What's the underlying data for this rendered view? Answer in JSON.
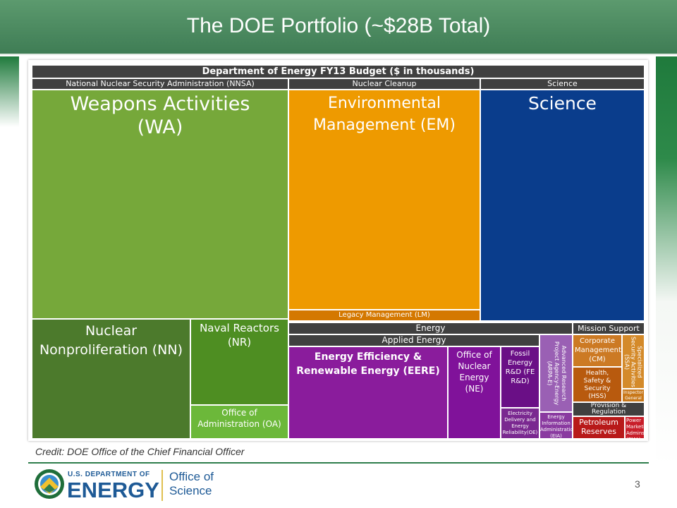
{
  "slide": {
    "title": "The DOE Portfolio (~$28B Total)",
    "credit": "Credit: DOE Office of the Chief Financial Officer",
    "page_number": "3"
  },
  "logo": {
    "agency_top": "U.S. DEPARTMENT OF",
    "agency_main": "ENERGY",
    "office": "Office of Science"
  },
  "treemap": {
    "title": "Department of Energy FY13 Budget ($ in thousands)",
    "groups": {
      "nnsa": "National Nuclear Security Administration (NNSA)",
      "nuclear_cleanup": "Nuclear Cleanup",
      "science": "Science",
      "energy": "Energy",
      "applied_energy": "Applied Energy",
      "mission_support": "Mission Support",
      "provision": "Provision & Regulation"
    },
    "cells": {
      "wa": "Weapons Activities (WA)",
      "nn": "Nuclear Nonproliferation (NN)",
      "nr": "Naval Reactors (NR)",
      "oa": "Office of Administration (OA)",
      "em": "Environmental Management (EM)",
      "lm": "Legacy Management (LM)",
      "sc": "Science",
      "eere": "Energy Efficiency & Renewable Energy (EERE)",
      "ne": "Office of Nuclear Energy (NE)",
      "fe": "Fossil Energy R&D (FE R&D)",
      "oe": "Electricity Delivery and Energy Reliability(OE)",
      "arpa": "Advanced Research Project Agency-Energy (ARPA-E)",
      "eia": "Energy Information Administration (EIA)",
      "cm": "Corporate Management (CM)",
      "ssa": "Specialized Security Activities (SSA)",
      "hss": "Health, Safety & Security (HSS)",
      "ig": "Inspector General",
      "pr": "Petroleum Reserves",
      "pma": "Power Marketing Admins (PMA)"
    },
    "colors": {
      "wa": "#76a83a",
      "nn": "#4c7a2c",
      "nr": "#4e8e22",
      "oa": "#6cb83a",
      "em": "#ee9a00",
      "lm": "#d47800",
      "sc": "#0a3d8c",
      "eere": "#8a1c9c",
      "ne": "#80129a",
      "fe": "#6a0f86",
      "oe": "#7a2890",
      "arpa": "#9a60b4",
      "eia": "#8a3aa0",
      "cm": "#cc7a24",
      "ssa": "#d48a2a",
      "hss": "#b85a0e",
      "ig": "#c8781a",
      "pr": "#b81a1a",
      "pma": "#c81e2a"
    }
  }
}
